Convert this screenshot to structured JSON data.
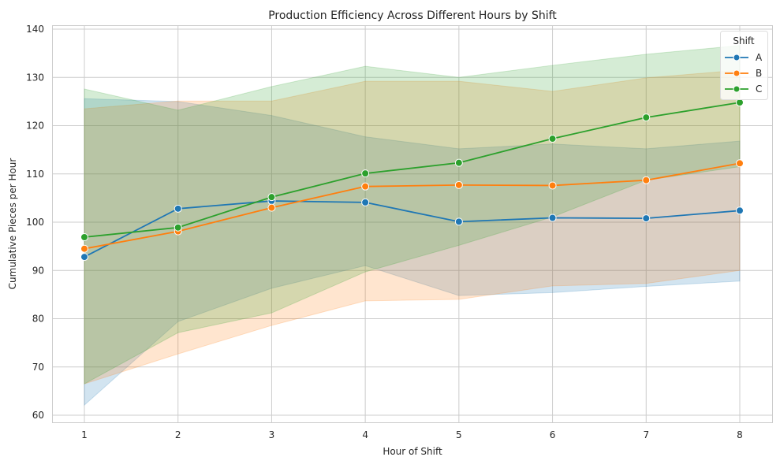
{
  "chart_data": {
    "type": "line",
    "title": "Production Efficiency Across Different Hours by Shift",
    "xlabel": "Hour of Shift",
    "ylabel": "Cumulative Pieces per Hour",
    "x": [
      1,
      2,
      3,
      4,
      5,
      6,
      7,
      8
    ],
    "xlim": [
      0.66,
      8.36
    ],
    "ylim": [
      58.5,
      140.8
    ],
    "yticks": [
      60,
      70,
      80,
      90,
      100,
      110,
      120,
      130,
      140
    ],
    "grid": true,
    "legend": {
      "title": "Shift",
      "placement": "top-right"
    },
    "series": [
      {
        "name": "A",
        "color": "#1f77b4",
        "values": [
          92.8,
          102.8,
          104.4,
          104.1,
          100.1,
          100.9,
          100.8,
          102.4
        ],
        "ci_upper": [
          125.6,
          125.0,
          122.1,
          117.7,
          115.2,
          116.2,
          115.2,
          116.8
        ],
        "ci_lower": [
          62.1,
          79.4,
          86.3,
          91.0,
          84.8,
          85.4,
          86.7,
          87.8
        ]
      },
      {
        "name": "B",
        "color": "#ff7f0e",
        "values": [
          94.5,
          98.1,
          103.0,
          107.4,
          107.7,
          107.6,
          108.7,
          112.2
        ],
        "ci_upper": [
          123.5,
          125.1,
          125.1,
          129.2,
          129.2,
          127.1,
          129.9,
          131.5
        ],
        "ci_lower": [
          66.5,
          72.7,
          78.6,
          83.7,
          84.0,
          86.8,
          87.3,
          90.0
        ]
      },
      {
        "name": "C",
        "color": "#2ca02c",
        "values": [
          96.9,
          98.9,
          105.2,
          110.1,
          112.3,
          117.3,
          121.7,
          124.8
        ],
        "ci_upper": [
          127.6,
          123.2,
          128.1,
          132.3,
          130.0,
          132.5,
          134.8,
          136.6
        ],
        "ci_lower": [
          66.5,
          77.1,
          81.2,
          89.7,
          95.2,
          101.1,
          108.7,
          111.5
        ]
      }
    ]
  }
}
